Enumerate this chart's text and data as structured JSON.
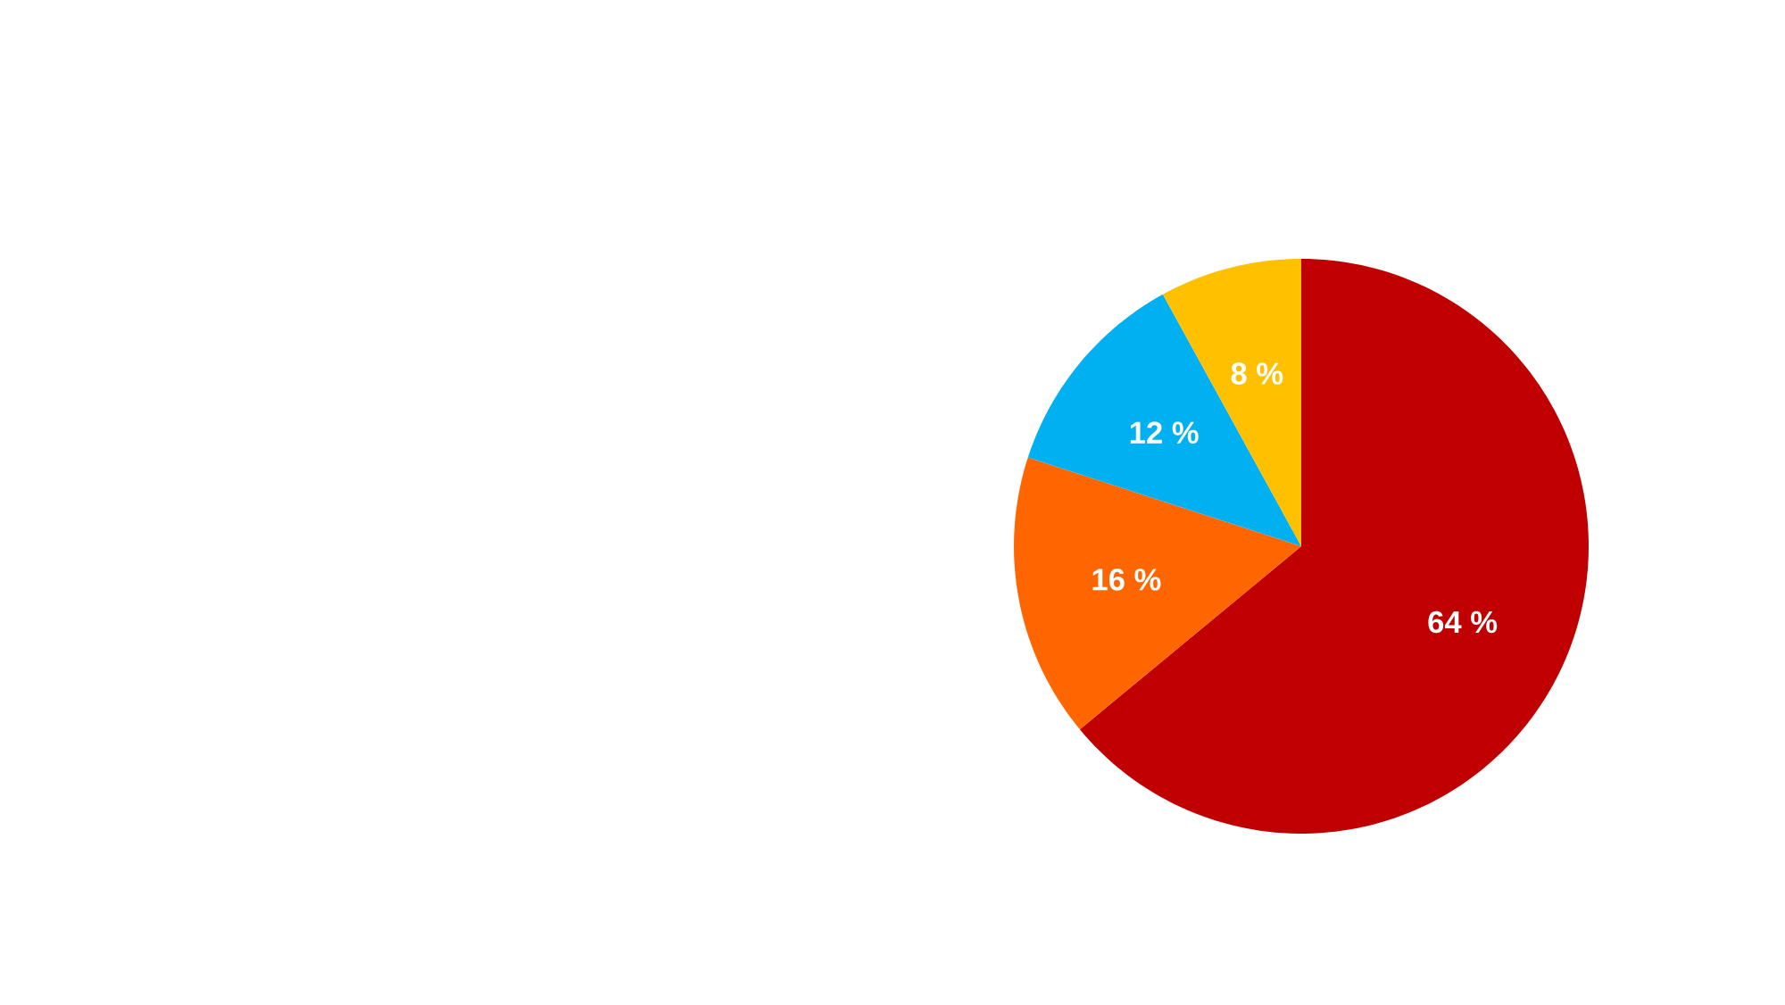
{
  "chart_data": {
    "type": "pie",
    "categories": [
      null,
      null,
      null,
      null
    ],
    "values": [
      64,
      16,
      12,
      8
    ],
    "colors": [
      "#c00000",
      "#ff6600",
      "#00b0f0",
      "#ffc000"
    ],
    "value_labels": [
      "64 %",
      "16 %",
      "12 %",
      "8 %"
    ]
  }
}
